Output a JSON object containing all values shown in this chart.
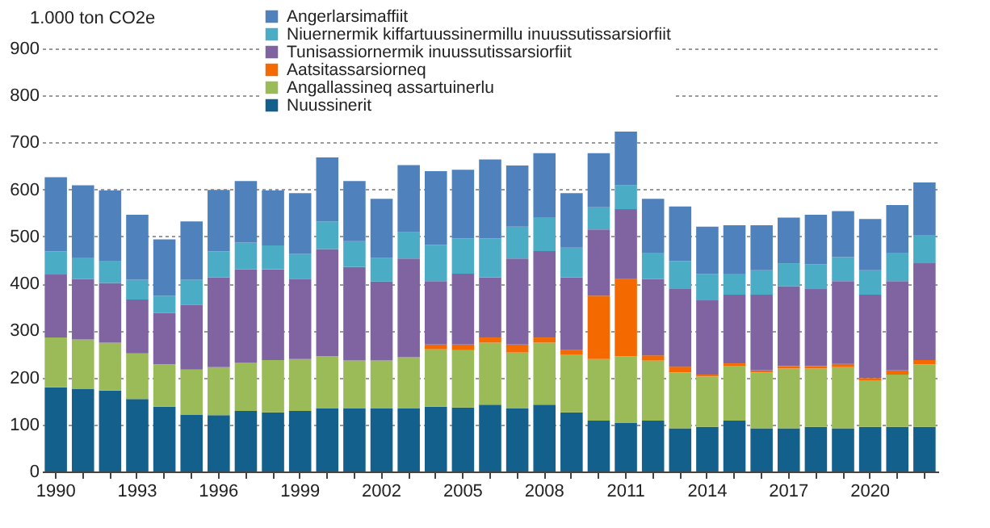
{
  "chart_data": {
    "type": "bar",
    "stacked": true,
    "ylabel": "1.000 ton CO2e",
    "categories": [
      "1990",
      null,
      null,
      "1993",
      null,
      null,
      "1996",
      null,
      null,
      "1999",
      null,
      null,
      "2002",
      null,
      null,
      "2005",
      null,
      null,
      "2008",
      null,
      null,
      "2011",
      null,
      null,
      "2014",
      null,
      null,
      "2017",
      null,
      null,
      "2020",
      null,
      null
    ],
    "ylim": [
      0,
      900
    ],
    "yticks": [
      0,
      100,
      200,
      300,
      400,
      500,
      600,
      700,
      800,
      900
    ],
    "grid": "y",
    "legend": "top",
    "series": [
      {
        "name": "Nuussinerit",
        "color": "#14608c",
        "values": [
          179,
          176,
          172,
          154,
          138,
          121,
          120,
          129,
          126,
          129,
          134,
          134,
          134,
          134,
          138,
          136,
          142,
          134,
          142,
          126,
          108,
          103,
          108,
          92,
          95,
          108,
          92,
          92,
          95,
          92,
          95,
          95,
          95
        ]
      },
      {
        "name": "Angallassineq assartuinerlu",
        "color": "#9bbb59",
        "values": [
          106,
          105,
          102,
          97,
          90,
          96,
          102,
          102,
          111,
          110,
          111,
          102,
          102,
          109,
          122,
          122,
          132,
          119,
          132,
          123,
          131,
          142,
          128,
          119,
          107,
          116,
          119,
          127,
          124,
          130,
          99,
          111,
          133
        ]
      },
      {
        "name": "Aatsitassarsiorneq",
        "color": "#f46a00",
        "values": [
          0,
          0,
          0,
          0,
          0,
          0,
          0,
          0,
          0,
          0,
          0,
          0,
          0,
          0,
          10,
          12,
          11,
          17,
          11,
          9,
          135,
          164,
          11,
          12,
          4,
          6,
          4,
          5,
          5,
          7,
          5,
          9,
          9
        ]
      },
      {
        "name": "Tunisassiornermik inuussutissarsiorfiit",
        "color": "#8064a2",
        "values": [
          134,
          128,
          127,
          115,
          109,
          137,
          191,
          199,
          193,
          170,
          228,
          199,
          168,
          210,
          135,
          151,
          128,
          183,
          184,
          155,
          141,
          149,
          162,
          165,
          158,
          146,
          161,
          170,
          164,
          176,
          177,
          190,
          206
        ]
      },
      {
        "name": "Niuernermik kiffartuussinermillu inuussutissarsiorfiit",
        "color": "#4bacc6",
        "values": [
          49,
          46,
          46,
          42,
          37,
          54,
          55,
          57,
          51,
          54,
          59,
          55,
          51,
          57,
          77,
          75,
          83,
          68,
          72,
          63,
          47,
          51,
          55,
          60,
          56,
          45,
          52,
          49,
          53,
          51,
          52,
          59,
          59
        ]
      },
      {
        "name": "Angerlarsimaffiit",
        "color": "#4f81bd",
        "values": [
          158,
          154,
          151,
          138,
          120,
          124,
          131,
          131,
          117,
          129,
          136,
          128,
          125,
          142,
          157,
          146,
          168,
          130,
          136,
          116,
          115,
          114,
          116,
          116,
          101,
          103,
          96,
          97,
          105,
          98,
          109,
          103,
          113
        ]
      }
    ]
  }
}
